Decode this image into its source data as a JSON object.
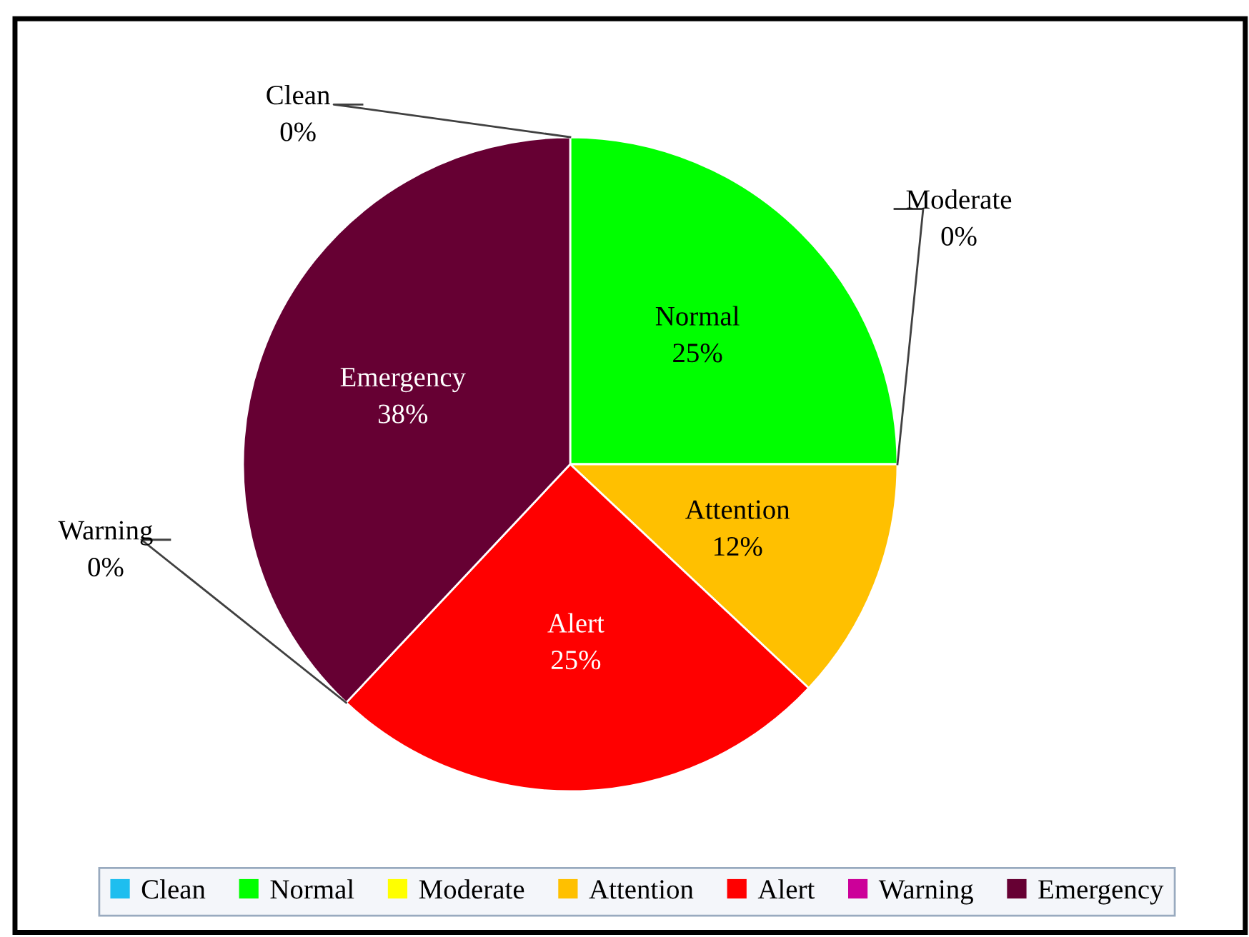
{
  "chart_data": {
    "type": "pie",
    "categories": [
      "Clean",
      "Normal",
      "Moderate",
      "Attention",
      "Alert",
      "Warning",
      "Emergency"
    ],
    "values": [
      0,
      25,
      0,
      12,
      25,
      0,
      38
    ],
    "value_labels": [
      "0%",
      "25%",
      "0%",
      "12%",
      "25%",
      "0%",
      "38%"
    ],
    "colors": [
      "#1ebeef",
      "#00ff00",
      "#ffff00",
      "#ffc000",
      "#ff0000",
      "#cc0099",
      "#660033"
    ],
    "legend": "bottom"
  }
}
